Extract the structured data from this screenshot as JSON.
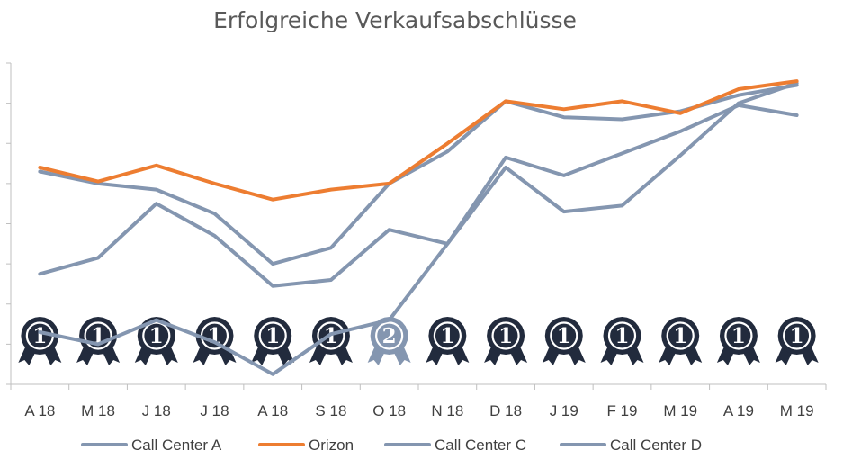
{
  "chart_data": {
    "type": "line",
    "title": "Erfolgreiche Verkaufsabschlüsse",
    "xlabel": "",
    "ylabel": "",
    "ylim": [
      0,
      8
    ],
    "categories": [
      "A 18",
      "M 18",
      "J 18",
      "J 18",
      "A 18",
      "S 18",
      "O 18",
      "N 18",
      "D 18",
      "J 19",
      "F 19",
      "M 19",
      "A 19",
      "M 19"
    ],
    "series": [
      {
        "name": "Call Center A",
        "color": "#8496b0",
        "values": [
          1.3,
          1.0,
          1.6,
          1.05,
          0.25,
          1.25,
          1.6,
          3.5,
          5.4,
          4.3,
          4.45,
          5.7,
          7.0,
          7.5
        ]
      },
      {
        "name": "Orizon",
        "color": "#ed7d31",
        "values": [
          5.4,
          5.05,
          5.45,
          5.0,
          4.6,
          4.85,
          5.0,
          6.0,
          7.05,
          6.85,
          7.05,
          6.75,
          7.35,
          7.55
        ]
      },
      {
        "name": "Call Center C",
        "color": "#8496b0",
        "values": [
          5.3,
          5.0,
          4.85,
          4.25,
          3.0,
          3.4,
          5.0,
          5.8,
          7.05,
          6.65,
          6.6,
          6.8,
          7.2,
          7.45
        ]
      },
      {
        "name": "Call Center D",
        "color": "#8496b0",
        "values": [
          2.75,
          3.15,
          4.5,
          3.7,
          2.45,
          2.6,
          3.85,
          3.5,
          5.65,
          5.2,
          5.75,
          6.3,
          6.95,
          6.7
        ]
      }
    ],
    "ranks": [
      "1",
      "1",
      "1",
      "1",
      "1",
      "1",
      "2",
      "1",
      "1",
      "1",
      "1",
      "1",
      "1",
      "1"
    ],
    "legend_position": "bottom",
    "grid": false
  }
}
